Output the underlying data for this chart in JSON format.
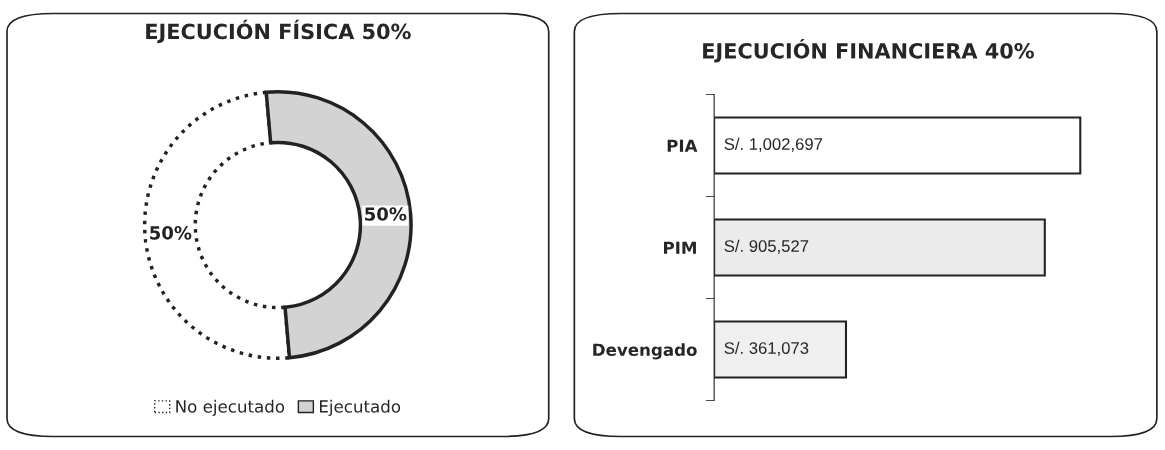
{
  "chart_data": [
    {
      "type": "donut",
      "title": "EJECUCIÓN FÍSICA 50%",
      "categories": [
        "No ejecutado",
        "Ejecutado"
      ],
      "values": [
        50,
        50
      ],
      "colors": [
        "#ffffff",
        "#d3d3d3"
      ],
      "value_labels": [
        "50%",
        "50%"
      ],
      "legend": "bottom"
    },
    {
      "type": "bar",
      "orientation": "horizontal",
      "title": "EJECUCIÓN FINANCIERA 40%",
      "categories": [
        "PIA",
        "PIM",
        "Devengado"
      ],
      "series": [
        {
          "values": [
            1002697,
            905527,
            361073
          ],
          "value_labels": [
            "S/. 1,002,697",
            "S/. 905,527",
            "S/. 361,073"
          ],
          "colors": [
            "#ffffff",
            "#ebebeb",
            "#efefef"
          ]
        }
      ],
      "tick_labels": "y"
    }
  ]
}
